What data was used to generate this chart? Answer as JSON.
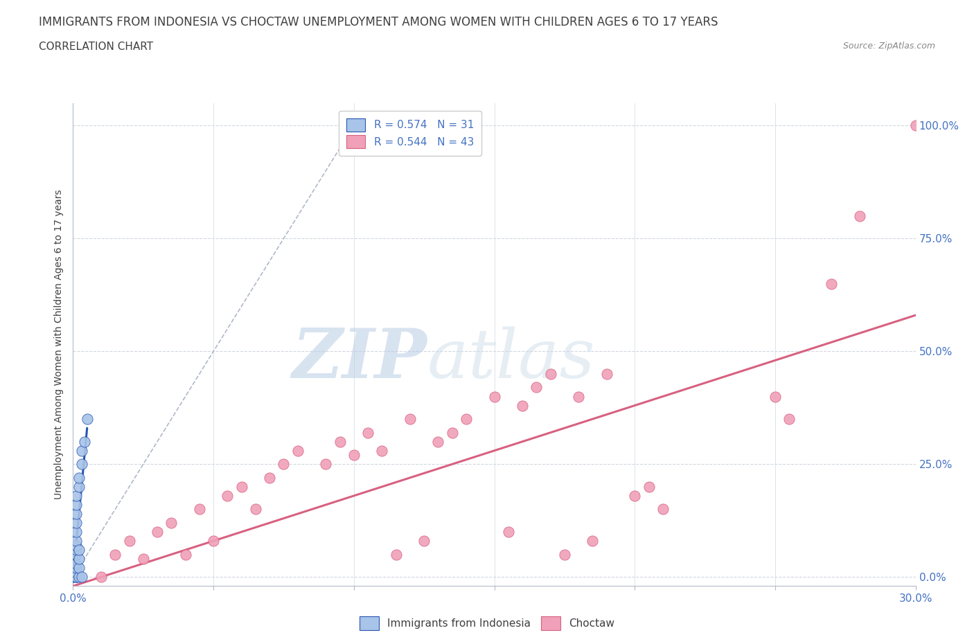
{
  "title": "IMMIGRANTS FROM INDONESIA VS CHOCTAW UNEMPLOYMENT AMONG WOMEN WITH CHILDREN AGES 6 TO 17 YEARS",
  "subtitle": "CORRELATION CHART",
  "source": "Source: ZipAtlas.com",
  "ylabel": "Unemployment Among Women with Children Ages 6 to 17 years",
  "xlim": [
    0.0,
    0.3
  ],
  "ylim": [
    -0.02,
    1.05
  ],
  "ytick_labels": [
    "0.0%",
    "25.0%",
    "50.0%",
    "75.0%",
    "100.0%"
  ],
  "ytick_vals": [
    0.0,
    0.25,
    0.5,
    0.75,
    1.0
  ],
  "xtick_vals": [
    0.0,
    0.05,
    0.1,
    0.15,
    0.2,
    0.25,
    0.3
  ],
  "xtick_labels": [
    "0.0%",
    "",
    "",
    "",
    "",
    "",
    "30.0%"
  ],
  "legend_blue_label": "Immigrants from Indonesia",
  "legend_pink_label": "Choctaw",
  "R_blue": 0.574,
  "N_blue": 31,
  "R_pink": 0.544,
  "N_pink": 43,
  "blue_scatter": [
    [
      0.0,
      0.0
    ],
    [
      0.0,
      0.0
    ],
    [
      0.0,
      0.0
    ],
    [
      0.0,
      0.01
    ],
    [
      0.0,
      0.0
    ],
    [
      0.001,
      0.0
    ],
    [
      0.001,
      0.0
    ],
    [
      0.001,
      0.0
    ],
    [
      0.001,
      0.01
    ],
    [
      0.001,
      0.02
    ],
    [
      0.001,
      0.03
    ],
    [
      0.001,
      0.05
    ],
    [
      0.001,
      0.06
    ],
    [
      0.001,
      0.07
    ],
    [
      0.001,
      0.08
    ],
    [
      0.001,
      0.1
    ],
    [
      0.001,
      0.12
    ],
    [
      0.001,
      0.14
    ],
    [
      0.001,
      0.16
    ],
    [
      0.001,
      0.18
    ],
    [
      0.002,
      0.0
    ],
    [
      0.002,
      0.02
    ],
    [
      0.002,
      0.04
    ],
    [
      0.002,
      0.06
    ],
    [
      0.002,
      0.2
    ],
    [
      0.002,
      0.22
    ],
    [
      0.003,
      0.0
    ],
    [
      0.003,
      0.25
    ],
    [
      0.003,
      0.28
    ],
    [
      0.004,
      0.3
    ],
    [
      0.005,
      0.35
    ]
  ],
  "pink_scatter": [
    [
      0.01,
      0.0
    ],
    [
      0.015,
      0.05
    ],
    [
      0.02,
      0.08
    ],
    [
      0.025,
      0.04
    ],
    [
      0.03,
      0.1
    ],
    [
      0.035,
      0.12
    ],
    [
      0.04,
      0.05
    ],
    [
      0.045,
      0.15
    ],
    [
      0.05,
      0.08
    ],
    [
      0.055,
      0.18
    ],
    [
      0.06,
      0.2
    ],
    [
      0.065,
      0.15
    ],
    [
      0.07,
      0.22
    ],
    [
      0.075,
      0.25
    ],
    [
      0.08,
      0.28
    ],
    [
      0.09,
      0.25
    ],
    [
      0.095,
      0.3
    ],
    [
      0.1,
      0.27
    ],
    [
      0.105,
      0.32
    ],
    [
      0.11,
      0.28
    ],
    [
      0.115,
      0.05
    ],
    [
      0.12,
      0.35
    ],
    [
      0.125,
      0.08
    ],
    [
      0.13,
      0.3
    ],
    [
      0.135,
      0.32
    ],
    [
      0.14,
      0.35
    ],
    [
      0.15,
      0.4
    ],
    [
      0.155,
      0.1
    ],
    [
      0.16,
      0.38
    ],
    [
      0.165,
      0.42
    ],
    [
      0.17,
      0.45
    ],
    [
      0.175,
      0.05
    ],
    [
      0.18,
      0.4
    ],
    [
      0.185,
      0.08
    ],
    [
      0.19,
      0.45
    ],
    [
      0.2,
      0.18
    ],
    [
      0.205,
      0.2
    ],
    [
      0.21,
      0.15
    ],
    [
      0.25,
      0.4
    ],
    [
      0.255,
      0.35
    ],
    [
      0.27,
      0.65
    ],
    [
      0.28,
      0.8
    ],
    [
      0.3,
      1.0
    ]
  ],
  "blue_line_x": [
    0.0,
    0.005
  ],
  "blue_line_y": [
    0.0,
    0.33
  ],
  "pink_line_x": [
    0.0,
    0.3
  ],
  "pink_line_y": [
    -0.02,
    0.58
  ],
  "diag_line_x": [
    0.0,
    0.1
  ],
  "diag_line_y": [
    0.0,
    1.0
  ],
  "watermark_text": "ZIP",
  "watermark_text2": "atlas",
  "background_color": "#ffffff",
  "plot_bg_color": "#ffffff",
  "blue_dot_color": "#a8c4e8",
  "pink_dot_color": "#f0a0b8",
  "blue_line_color": "#2855b0",
  "pink_line_color": "#d86080",
  "diag_line_color": "#b0b8c8",
  "grid_color": "#d0d8e0",
  "axis_label_color": "#4472c4",
  "title_color": "#404040",
  "title_fontsize": 12,
  "subtitle_fontsize": 11,
  "source_fontsize": 9,
  "legend_fontsize": 11,
  "ylabel_fontsize": 10
}
